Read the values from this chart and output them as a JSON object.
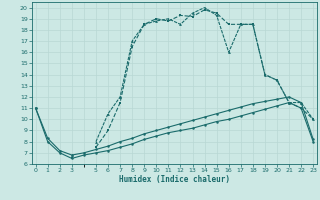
{
  "xlabel": "Humidex (Indice chaleur)",
  "background_color": "#cce8e4",
  "grid_color": "#b0d4cf",
  "line_color": "#1a6b6b",
  "hours": [
    0,
    1,
    2,
    3,
    4,
    5,
    6,
    7,
    8,
    9,
    10,
    11,
    12,
    13,
    14,
    15,
    16,
    17,
    18,
    19,
    20,
    21,
    22,
    23
  ],
  "line_flat1": [
    11,
    8,
    7,
    6.5,
    6.8,
    7.0,
    7.2,
    7.5,
    7.8,
    8.2,
    8.5,
    8.8,
    9.0,
    9.2,
    9.5,
    9.8,
    10.0,
    10.3,
    10.6,
    10.9,
    11.2,
    11.5,
    11.0,
    8.0
  ],
  "line_flat2": [
    11,
    8.3,
    7.2,
    6.8,
    7.0,
    7.3,
    7.6,
    8.0,
    8.3,
    8.7,
    9.0,
    9.3,
    9.6,
    9.9,
    10.2,
    10.5,
    10.8,
    11.1,
    11.4,
    11.6,
    11.8,
    12.0,
    11.5,
    8.2
  ],
  "line_peak1": [
    null,
    null,
    null,
    6.5,
    null,
    7.5,
    9.0,
    11.5,
    16.5,
    18.5,
    19.0,
    18.8,
    19.3,
    19.2,
    19.8,
    19.5,
    18.5,
    18.5,
    18.5,
    14.0,
    13.5,
    11.5,
    11.0,
    10.0
  ],
  "line_peak2": [
    null,
    null,
    null,
    6.8,
    null,
    8.0,
    10.5,
    12.0,
    17.0,
    18.5,
    18.8,
    19.0,
    18.5,
    19.5,
    20.0,
    19.3,
    16.0,
    18.5,
    18.5,
    14.0,
    13.5,
    11.5,
    11.5,
    10.0
  ],
  "ylim": [
    6,
    20.5
  ],
  "xlim": [
    -0.3,
    23.3
  ],
  "yticks": [
    6,
    7,
    8,
    9,
    10,
    11,
    12,
    13,
    14,
    15,
    16,
    17,
    18,
    19,
    20
  ],
  "xticks": [
    0,
    1,
    2,
    3,
    5,
    6,
    7,
    8,
    9,
    10,
    11,
    12,
    13,
    14,
    15,
    16,
    17,
    18,
    19,
    20,
    21,
    22,
    23
  ]
}
